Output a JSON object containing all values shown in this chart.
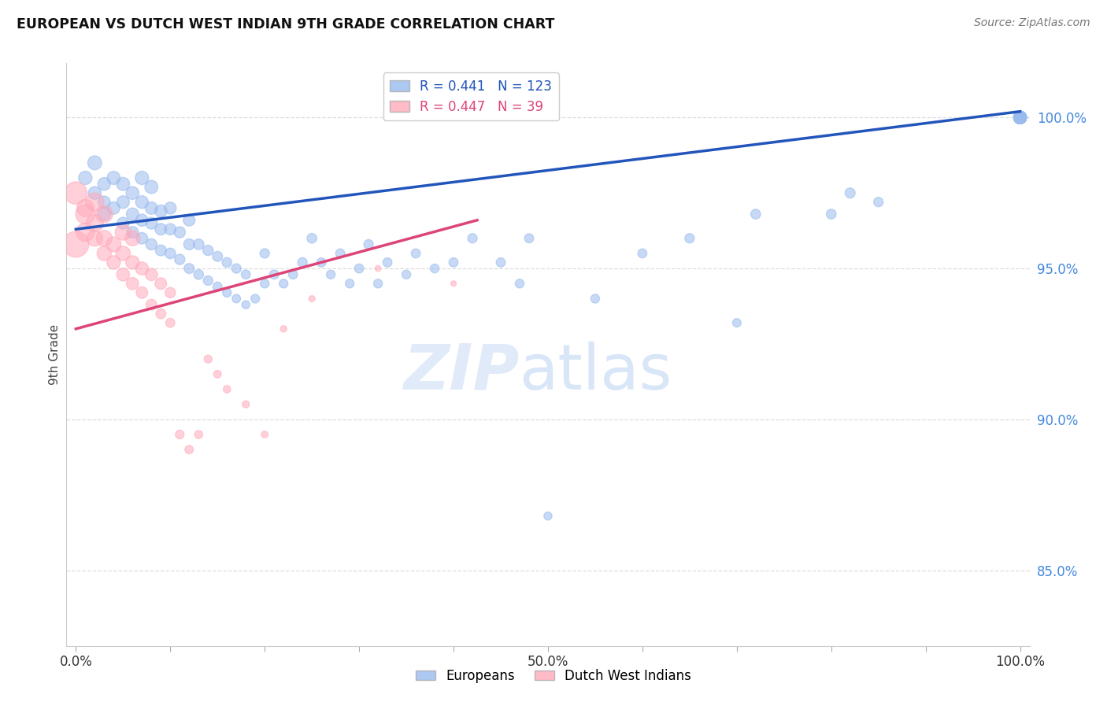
{
  "title": "EUROPEAN VS DUTCH WEST INDIAN 9TH GRADE CORRELATION CHART",
  "source": "Source: ZipAtlas.com",
  "ylabel": "9th Grade",
  "xlim": [
    -0.01,
    1.01
  ],
  "ylim": [
    0.825,
    1.018
  ],
  "yticks": [
    0.85,
    0.9,
    0.95,
    1.0
  ],
  "ytick_labels": [
    "85.0%",
    "90.0%",
    "95.0%",
    "100.0%"
  ],
  "xtick_labels": [
    "0.0%",
    "",
    "",
    "",
    "",
    "50.0%",
    "",
    "",
    "",
    "",
    "100.0%"
  ],
  "blue_R": 0.441,
  "blue_N": 123,
  "pink_R": 0.447,
  "pink_N": 39,
  "blue_color": "#99BBEE",
  "pink_color": "#FFAABB",
  "blue_line_color": "#2255BB",
  "pink_line_color": "#DD4477",
  "watermark_zip": "ZIP",
  "watermark_atlas": "atlas",
  "background_color": "#ffffff",
  "grid_color": "#dddddd",
  "blue_trend_x0": 0.0,
  "blue_trend_x1": 1.0,
  "blue_trend_y0": 0.963,
  "blue_trend_y1": 1.002,
  "pink_trend_x0": 0.0,
  "pink_trend_x1": 0.425,
  "pink_trend_y0": 0.93,
  "pink_trend_y1": 0.966,
  "blue_x": [
    0.01,
    0.02,
    0.02,
    0.03,
    0.03,
    0.03,
    0.04,
    0.04,
    0.05,
    0.05,
    0.05,
    0.06,
    0.06,
    0.06,
    0.07,
    0.07,
    0.07,
    0.07,
    0.08,
    0.08,
    0.08,
    0.08,
    0.09,
    0.09,
    0.09,
    0.1,
    0.1,
    0.1,
    0.11,
    0.11,
    0.12,
    0.12,
    0.12,
    0.13,
    0.13,
    0.14,
    0.14,
    0.15,
    0.15,
    0.16,
    0.16,
    0.17,
    0.17,
    0.18,
    0.18,
    0.19,
    0.2,
    0.2,
    0.21,
    0.22,
    0.23,
    0.24,
    0.25,
    0.26,
    0.27,
    0.28,
    0.29,
    0.3,
    0.31,
    0.32,
    0.33,
    0.35,
    0.36,
    0.38,
    0.4,
    0.42,
    0.45,
    0.47,
    0.48,
    0.5,
    0.55,
    0.6,
    0.65,
    0.7,
    0.72,
    0.8,
    0.82,
    0.85,
    1.0,
    1.0,
    1.0,
    1.0,
    1.0,
    1.0,
    1.0,
    1.0,
    1.0,
    1.0,
    1.0,
    1.0,
    1.0,
    1.0,
    1.0,
    1.0,
    1.0,
    1.0,
    1.0,
    1.0,
    1.0,
    1.0,
    1.0,
    1.0,
    1.0,
    1.0,
    1.0,
    1.0,
    1.0,
    1.0,
    1.0,
    1.0,
    1.0,
    1.0,
    1.0,
    1.0,
    1.0,
    1.0,
    1.0,
    1.0,
    1.0,
    1.0,
    1.0,
    1.0,
    1.0
  ],
  "blue_y": [
    0.98,
    0.975,
    0.985,
    0.972,
    0.978,
    0.968,
    0.97,
    0.98,
    0.965,
    0.972,
    0.978,
    0.962,
    0.968,
    0.975,
    0.96,
    0.966,
    0.972,
    0.98,
    0.958,
    0.965,
    0.97,
    0.977,
    0.956,
    0.963,
    0.969,
    0.955,
    0.963,
    0.97,
    0.953,
    0.962,
    0.95,
    0.958,
    0.966,
    0.948,
    0.958,
    0.946,
    0.956,
    0.944,
    0.954,
    0.942,
    0.952,
    0.94,
    0.95,
    0.938,
    0.948,
    0.94,
    0.945,
    0.955,
    0.948,
    0.945,
    0.948,
    0.952,
    0.96,
    0.952,
    0.948,
    0.955,
    0.945,
    0.95,
    0.958,
    0.945,
    0.952,
    0.948,
    0.955,
    0.95,
    0.952,
    0.96,
    0.952,
    0.945,
    0.96,
    0.868,
    0.94,
    0.955,
    0.96,
    0.932,
    0.968,
    0.968,
    0.975,
    0.972,
    1.0,
    1.0,
    1.0,
    1.0,
    1.0,
    1.0,
    1.0,
    1.0,
    1.0,
    1.0,
    1.0,
    1.0,
    1.0,
    1.0,
    1.0,
    1.0,
    1.0,
    1.0,
    1.0,
    1.0,
    1.0,
    1.0,
    1.0,
    1.0,
    1.0,
    1.0,
    1.0,
    1.0,
    1.0,
    1.0,
    1.0,
    1.0,
    1.0,
    1.0,
    1.0,
    1.0,
    1.0,
    1.0,
    1.0,
    1.0,
    1.0,
    1.0,
    1.0,
    1.0,
    1.0
  ],
  "blue_sz": [
    60,
    55,
    65,
    50,
    55,
    60,
    52,
    58,
    48,
    53,
    58,
    46,
    51,
    56,
    44,
    49,
    54,
    60,
    42,
    47,
    52,
    58,
    40,
    45,
    50,
    38,
    43,
    48,
    36,
    42,
    34,
    40,
    46,
    32,
    38,
    30,
    36,
    28,
    34,
    26,
    32,
    24,
    30,
    22,
    28,
    25,
    26,
    30,
    28,
    26,
    28,
    30,
    32,
    28,
    26,
    28,
    26,
    28,
    30,
    26,
    28,
    26,
    28,
    26,
    28,
    30,
    28,
    26,
    28,
    22,
    26,
    28,
    30,
    24,
    32,
    32,
    34,
    30,
    50,
    48,
    46,
    44,
    50,
    52,
    50,
    48,
    46,
    50,
    52,
    50,
    48,
    52,
    50,
    48,
    52,
    50,
    52,
    50,
    52,
    50,
    52,
    50,
    52,
    50,
    52,
    50,
    52,
    50,
    52,
    50,
    52,
    50,
    52,
    50,
    52,
    50,
    52,
    50,
    52,
    50,
    52,
    50,
    52
  ],
  "pink_x": [
    0.0,
    0.0,
    0.01,
    0.01,
    0.01,
    0.02,
    0.02,
    0.02,
    0.03,
    0.03,
    0.03,
    0.04,
    0.04,
    0.05,
    0.05,
    0.05,
    0.06,
    0.06,
    0.06,
    0.07,
    0.07,
    0.08,
    0.08,
    0.09,
    0.09,
    0.1,
    0.1,
    0.11,
    0.12,
    0.13,
    0.14,
    0.15,
    0.16,
    0.18,
    0.2,
    0.22,
    0.25,
    0.32,
    0.4
  ],
  "pink_y": [
    0.975,
    0.958,
    0.97,
    0.962,
    0.968,
    0.96,
    0.965,
    0.972,
    0.955,
    0.96,
    0.968,
    0.952,
    0.958,
    0.948,
    0.955,
    0.962,
    0.945,
    0.952,
    0.96,
    0.942,
    0.95,
    0.938,
    0.948,
    0.935,
    0.945,
    0.932,
    0.942,
    0.895,
    0.89,
    0.895,
    0.92,
    0.915,
    0.91,
    0.905,
    0.895,
    0.93,
    0.94,
    0.95,
    0.945
  ],
  "pink_sz": [
    600,
    800,
    350,
    400,
    450,
    300,
    350,
    400,
    250,
    300,
    350,
    220,
    270,
    200,
    250,
    300,
    180,
    220,
    270,
    160,
    200,
    140,
    180,
    120,
    160,
    100,
    130,
    90,
    85,
    80,
    75,
    70,
    65,
    60,
    55,
    50,
    45,
    40,
    35
  ]
}
